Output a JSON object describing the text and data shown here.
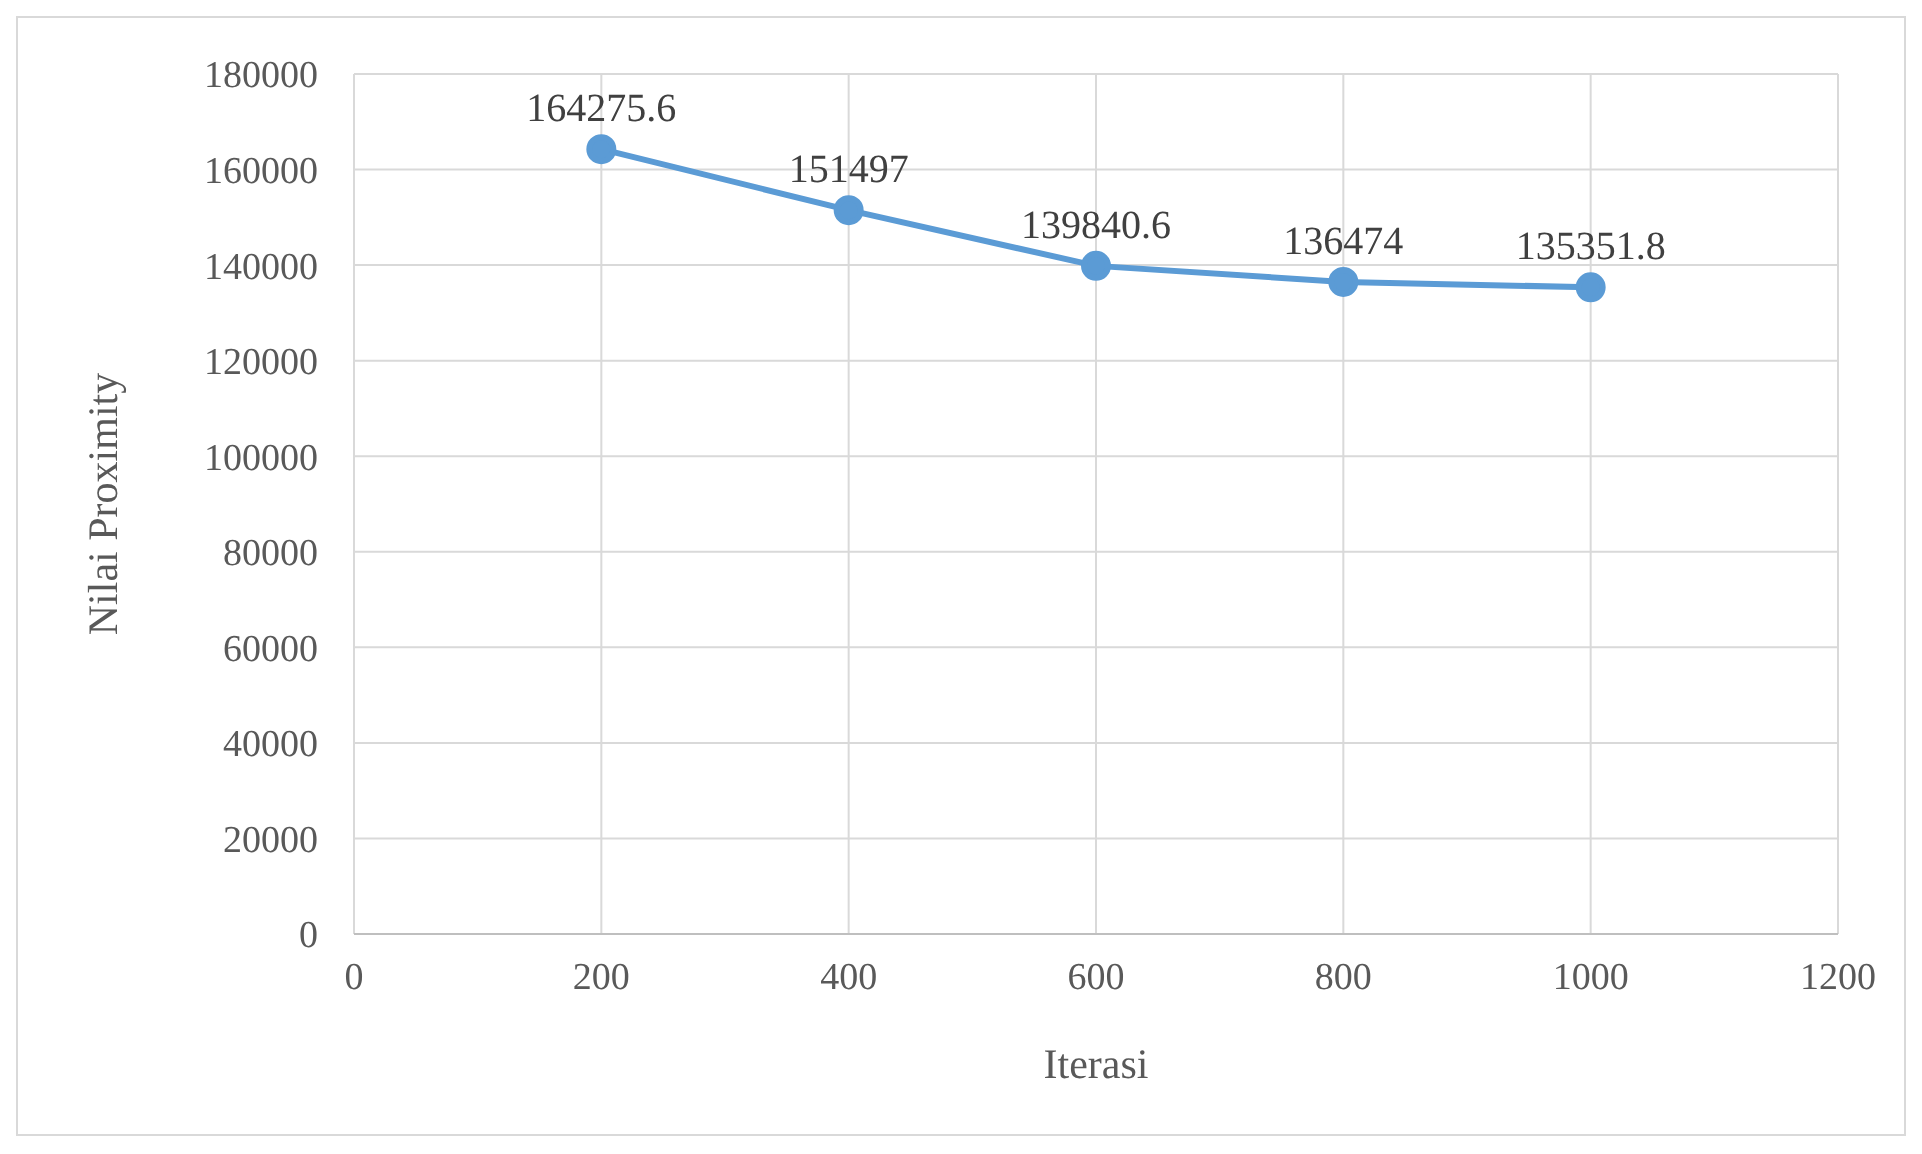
{
  "chart_data": {
    "type": "line",
    "xlabel": "Iterasi",
    "ylabel": "Nilai  Proximity",
    "x": [
      200,
      400,
      600,
      800,
      1000
    ],
    "series": [
      {
        "color": "#5b9bd5",
        "values": [
          164275.6,
          151497,
          139840.6,
          136474,
          135351.8
        ]
      }
    ],
    "xlim": [
      0,
      1200
    ],
    "xticks": [
      0,
      200,
      400,
      600,
      800,
      1000,
      1200
    ],
    "ylim": [
      0,
      180000
    ],
    "yticks": [
      0,
      20000,
      40000,
      60000,
      80000,
      100000,
      120000,
      140000,
      160000,
      180000
    ],
    "grid": true,
    "marker": "circle",
    "line_style": "solid",
    "data_labels": true
  }
}
